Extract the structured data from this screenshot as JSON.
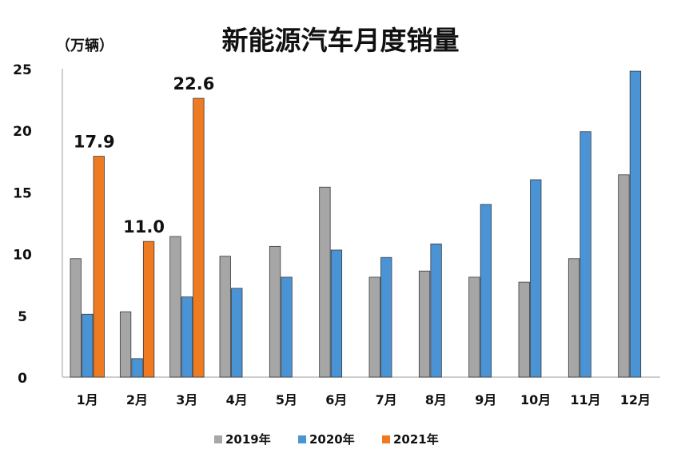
{
  "chart_data": {
    "type": "bar",
    "title": "新能源汽车月度销量",
    "ylabel": "（万辆）",
    "xlabel": "",
    "ylim": [
      0,
      25
    ],
    "yticks": [
      "0",
      "5",
      "10",
      "15",
      "20",
      "25"
    ],
    "categories": [
      "1月",
      "2月",
      "3月",
      "4月",
      "5月",
      "6月",
      "7月",
      "8月",
      "9月",
      "10月",
      "11月",
      "12月"
    ],
    "series": [
      {
        "name": "2019年",
        "color": "#a6a6a6",
        "values": [
          9.6,
          5.3,
          11.4,
          9.8,
          10.6,
          15.4,
          8.1,
          8.6,
          8.1,
          7.7,
          9.6,
          16.4
        ]
      },
      {
        "name": "2020年",
        "color": "#4a94d6",
        "values": [
          5.1,
          1.5,
          6.5,
          7.2,
          8.1,
          10.3,
          9.7,
          10.8,
          14.0,
          16.0,
          19.9,
          24.8
        ]
      },
      {
        "name": "2021年",
        "color": "#ee7b21",
        "values": [
          17.9,
          11.0,
          22.6,
          null,
          null,
          null,
          null,
          null,
          null,
          null,
          null,
          null
        ]
      }
    ],
    "data_labels": [
      {
        "series": 2,
        "index": 0,
        "text": "17.9"
      },
      {
        "series": 2,
        "index": 1,
        "text": "11.0"
      },
      {
        "series": 2,
        "index": 2,
        "text": "22.6"
      }
    ],
    "legend": {
      "position": "bottom"
    }
  }
}
